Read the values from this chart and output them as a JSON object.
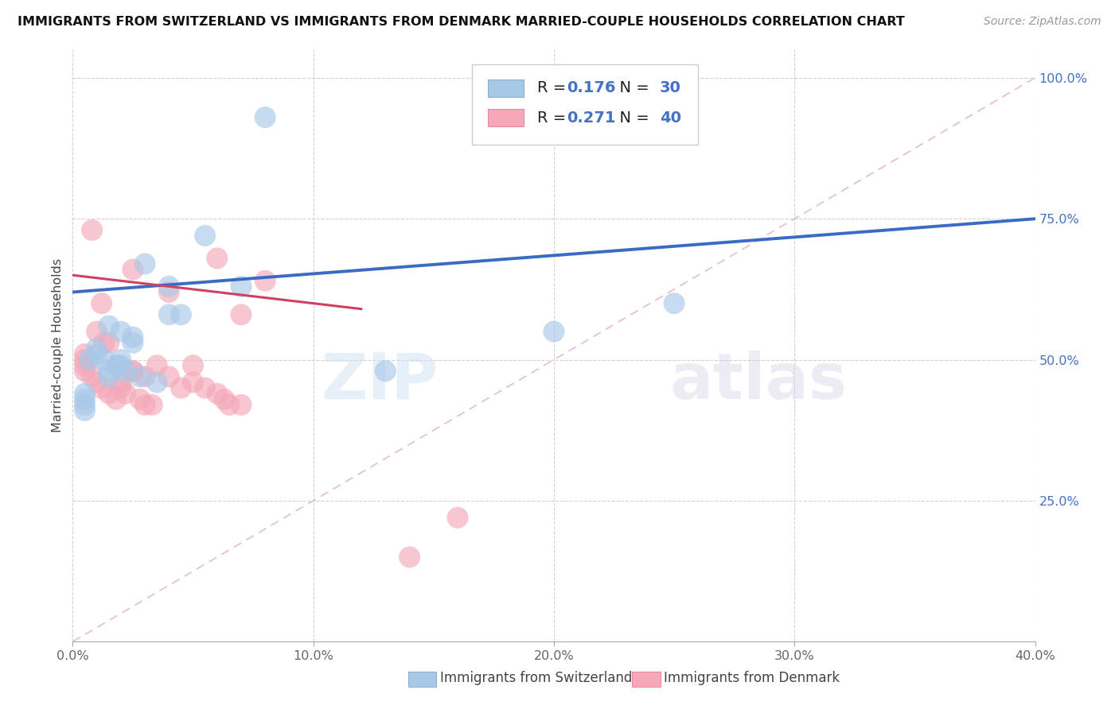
{
  "title": "IMMIGRANTS FROM SWITZERLAND VS IMMIGRANTS FROM DENMARK MARRIED-COUPLE HOUSEHOLDS CORRELATION CHART",
  "source": "Source: ZipAtlas.com",
  "legend_label_swiss": "Immigrants from Switzerland",
  "legend_label_denmark": "Immigrants from Denmark",
  "ylabel": "Married-couple Households",
  "xlim": [
    0.0,
    0.4
  ],
  "ylim": [
    0.0,
    1.05
  ],
  "xtick_labels": [
    "0.0%",
    "10.0%",
    "20.0%",
    "30.0%",
    "40.0%"
  ],
  "xtick_values": [
    0.0,
    0.1,
    0.2,
    0.3,
    0.4
  ],
  "ytick_labels": [
    "25.0%",
    "50.0%",
    "75.0%",
    "100.0%"
  ],
  "ytick_values": [
    0.25,
    0.5,
    0.75,
    1.0
  ],
  "r_switzerland": 0.176,
  "n_switzerland": 30,
  "r_denmark": 0.271,
  "n_denmark": 40,
  "color_switzerland": "#a8c8e8",
  "color_denmark": "#f4a8b8",
  "trendline_switzerland": "#3a6bc4",
  "trendline_denmark": "#d04060",
  "diagonal_color": "#e0b8c0",
  "watermark_zip": "ZIP",
  "watermark_atlas": "atlas",
  "swiss_x": [
    0.005,
    0.005,
    0.005,
    0.005,
    0.007,
    0.01,
    0.01,
    0.013,
    0.015,
    0.015,
    0.018,
    0.02,
    0.02,
    0.02,
    0.022,
    0.025,
    0.025,
    0.028,
    0.03,
    0.035,
    0.04,
    0.04,
    0.045,
    0.055,
    0.07,
    0.13,
    0.2,
    0.25,
    0.015,
    0.08
  ],
  "swiss_y": [
    0.44,
    0.43,
    0.42,
    0.41,
    0.5,
    0.52,
    0.51,
    0.5,
    0.48,
    0.47,
    0.49,
    0.55,
    0.5,
    0.49,
    0.48,
    0.54,
    0.53,
    0.47,
    0.67,
    0.46,
    0.63,
    0.58,
    0.58,
    0.72,
    0.63,
    0.48,
    0.55,
    0.6,
    0.56,
    0.93
  ],
  "denmark_x": [
    0.005,
    0.005,
    0.005,
    0.005,
    0.008,
    0.01,
    0.01,
    0.012,
    0.013,
    0.015,
    0.015,
    0.018,
    0.02,
    0.02,
    0.022,
    0.025,
    0.025,
    0.028,
    0.03,
    0.03,
    0.033,
    0.035,
    0.04,
    0.04,
    0.045,
    0.05,
    0.055,
    0.06,
    0.06,
    0.063,
    0.065,
    0.07,
    0.07,
    0.08,
    0.025,
    0.05,
    0.14,
    0.16,
    0.008,
    0.012
  ],
  "denmark_y": [
    0.51,
    0.5,
    0.49,
    0.48,
    0.47,
    0.46,
    0.55,
    0.45,
    0.53,
    0.44,
    0.53,
    0.43,
    0.46,
    0.45,
    0.44,
    0.48,
    0.66,
    0.43,
    0.47,
    0.42,
    0.42,
    0.49,
    0.47,
    0.62,
    0.45,
    0.46,
    0.45,
    0.44,
    0.68,
    0.43,
    0.42,
    0.58,
    0.42,
    0.64,
    0.48,
    0.49,
    0.15,
    0.22,
    0.73,
    0.6
  ],
  "trend_swiss_x0": 0.0,
  "trend_swiss_y0": 0.62,
  "trend_swiss_x1": 0.4,
  "trend_swiss_y1": 0.75,
  "trend_dk_x0": 0.0,
  "trend_dk_y0": 0.65,
  "trend_dk_x1": 0.12,
  "trend_dk_y1": 0.59
}
